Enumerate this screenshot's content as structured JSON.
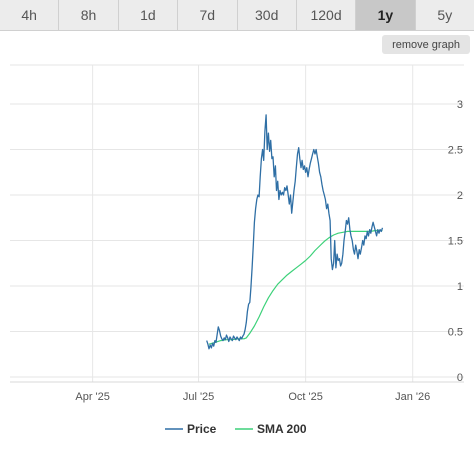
{
  "tabs": [
    {
      "label": "4h",
      "active": false
    },
    {
      "label": "8h",
      "active": false
    },
    {
      "label": "1d",
      "active": false
    },
    {
      "label": "7d",
      "active": false
    },
    {
      "label": "30d",
      "active": false
    },
    {
      "label": "120d",
      "active": false
    },
    {
      "label": "1y",
      "active": true
    },
    {
      "label": "5y",
      "active": false
    }
  ],
  "remove_graph_label": "remove graph",
  "colors": {
    "price": "#2f6fa5",
    "sma": "#3dd17a",
    "grid": "#e6e6e6",
    "active_tab": "#c8c8c8"
  },
  "chart_data": {
    "type": "line",
    "x_ticks": [
      {
        "label": "Apr '25",
        "date": "2025-04-01"
      },
      {
        "label": "Jul '25",
        "date": "2025-07-01"
      },
      {
        "label": "Oct '25",
        "date": "2025-10-01"
      },
      {
        "label": "Jan '26",
        "date": "2026-01-01"
      }
    ],
    "xlim": [
      "2025-01-20",
      "2026-01-21"
    ],
    "ylim": [
      0,
      3
    ],
    "y_ticks": [
      {
        "label": "0",
        "value": 0
      },
      {
        "label": "0.5",
        "value": 0.5
      },
      {
        "label": "1",
        "value": 1
      },
      {
        "label": "1.5",
        "value": 1.5
      },
      {
        "label": "2",
        "value": 2
      },
      {
        "label": "2.5",
        "value": 2.5
      },
      {
        "label": "3",
        "value": 3
      }
    ],
    "y_axis_side": "right",
    "grid": true,
    "legend_placement": "bottom-center",
    "series": [
      {
        "name": "Price",
        "color": "#2f6fa5",
        "points": [
          [
            "2025-07-08",
            0.4
          ],
          [
            "2025-07-09",
            0.36
          ],
          [
            "2025-07-10",
            0.31
          ],
          [
            "2025-07-11",
            0.35
          ],
          [
            "2025-07-12",
            0.32
          ],
          [
            "2025-07-13",
            0.37
          ],
          [
            "2025-07-14",
            0.34
          ],
          [
            "2025-07-15",
            0.4
          ],
          [
            "2025-07-16",
            0.38
          ],
          [
            "2025-07-17",
            0.47
          ],
          [
            "2025-07-18",
            0.55
          ],
          [
            "2025-07-19",
            0.51
          ],
          [
            "2025-07-20",
            0.45
          ],
          [
            "2025-07-21",
            0.42
          ],
          [
            "2025-07-22",
            0.4
          ],
          [
            "2025-07-23",
            0.43
          ],
          [
            "2025-07-24",
            0.41
          ],
          [
            "2025-07-25",
            0.46
          ],
          [
            "2025-07-26",
            0.43
          ],
          [
            "2025-07-27",
            0.39
          ],
          [
            "2025-07-28",
            0.44
          ],
          [
            "2025-07-29",
            0.42
          ],
          [
            "2025-07-30",
            0.4
          ],
          [
            "2025-07-31",
            0.45
          ],
          [
            "2025-08-01",
            0.43
          ],
          [
            "2025-08-02",
            0.41
          ],
          [
            "2025-08-03",
            0.44
          ],
          [
            "2025-08-04",
            0.42
          ],
          [
            "2025-08-05",
            0.4
          ],
          [
            "2025-08-06",
            0.44
          ],
          [
            "2025-08-07",
            0.42
          ],
          [
            "2025-08-08",
            0.45
          ],
          [
            "2025-08-09",
            0.47
          ],
          [
            "2025-08-10",
            0.52
          ],
          [
            "2025-08-11",
            0.6
          ],
          [
            "2025-08-12",
            0.72
          ],
          [
            "2025-08-13",
            0.8
          ],
          [
            "2025-08-14",
            0.82
          ],
          [
            "2025-08-15",
            0.98
          ],
          [
            "2025-08-16",
            1.2
          ],
          [
            "2025-08-17",
            1.45
          ],
          [
            "2025-08-18",
            1.7
          ],
          [
            "2025-08-19",
            1.85
          ],
          [
            "2025-08-20",
            1.95
          ],
          [
            "2025-08-21",
            2.0
          ],
          [
            "2025-08-22",
            1.98
          ],
          [
            "2025-08-23",
            2.2
          ],
          [
            "2025-08-24",
            2.4
          ],
          [
            "2025-08-25",
            2.5
          ],
          [
            "2025-08-26",
            2.38
          ],
          [
            "2025-08-27",
            2.7
          ],
          [
            "2025-08-28",
            2.88
          ],
          [
            "2025-08-29",
            2.5
          ],
          [
            "2025-08-30",
            2.68
          ],
          [
            "2025-08-31",
            2.48
          ],
          [
            "2025-09-01",
            2.6
          ],
          [
            "2025-09-02",
            2.4
          ],
          [
            "2025-09-03",
            2.42
          ],
          [
            "2025-09-04",
            2.2
          ],
          [
            "2025-09-05",
            2.32
          ],
          [
            "2025-09-06",
            2.05
          ],
          [
            "2025-09-07",
            2.15
          ],
          [
            "2025-09-08",
            1.95
          ],
          [
            "2025-09-09",
            2.05
          ],
          [
            "2025-09-10",
            2.0
          ],
          [
            "2025-09-11",
            2.03
          ],
          [
            "2025-09-12",
            2.0
          ],
          [
            "2025-09-13",
            2.08
          ],
          [
            "2025-09-14",
            2.05
          ],
          [
            "2025-09-15",
            2.1
          ],
          [
            "2025-09-16",
            2.0
          ],
          [
            "2025-09-17",
            1.9
          ],
          [
            "2025-09-18",
            2.0
          ],
          [
            "2025-09-19",
            1.8
          ],
          [
            "2025-09-20",
            1.92
          ],
          [
            "2025-09-21",
            2.05
          ],
          [
            "2025-09-22",
            2.15
          ],
          [
            "2025-09-23",
            2.3
          ],
          [
            "2025-09-24",
            2.45
          ],
          [
            "2025-09-25",
            2.52
          ],
          [
            "2025-09-26",
            2.4
          ],
          [
            "2025-09-27",
            2.3
          ],
          [
            "2025-09-28",
            2.38
          ],
          [
            "2025-09-29",
            2.28
          ],
          [
            "2025-09-30",
            2.32
          ],
          [
            "2025-10-01",
            2.25
          ],
          [
            "2025-10-02",
            2.3
          ],
          [
            "2025-10-03",
            2.2
          ],
          [
            "2025-10-04",
            2.28
          ],
          [
            "2025-10-05",
            2.35
          ],
          [
            "2025-10-06",
            2.4
          ],
          [
            "2025-10-07",
            2.45
          ],
          [
            "2025-10-08",
            2.5
          ],
          [
            "2025-10-09",
            2.45
          ],
          [
            "2025-10-10",
            2.5
          ],
          [
            "2025-10-11",
            2.42
          ],
          [
            "2025-10-12",
            2.35
          ],
          [
            "2025-10-13",
            2.25
          ],
          [
            "2025-10-14",
            2.2
          ],
          [
            "2025-10-15",
            2.12
          ],
          [
            "2025-10-16",
            2.05
          ],
          [
            "2025-10-17",
            2.0
          ],
          [
            "2025-10-18",
            1.95
          ],
          [
            "2025-10-19",
            1.85
          ],
          [
            "2025-10-20",
            1.9
          ],
          [
            "2025-10-21",
            1.8
          ],
          [
            "2025-10-22",
            1.72
          ],
          [
            "2025-10-23",
            1.3
          ],
          [
            "2025-10-24",
            1.18
          ],
          [
            "2025-10-25",
            1.25
          ],
          [
            "2025-10-26",
            1.5
          ],
          [
            "2025-10-27",
            1.2
          ],
          [
            "2025-10-28",
            1.35
          ],
          [
            "2025-10-29",
            1.28
          ],
          [
            "2025-10-30",
            1.3
          ],
          [
            "2025-10-31",
            1.22
          ],
          [
            "2025-11-01",
            1.25
          ],
          [
            "2025-11-02",
            1.35
          ],
          [
            "2025-11-03",
            1.5
          ],
          [
            "2025-11-04",
            1.6
          ],
          [
            "2025-11-05",
            1.72
          ],
          [
            "2025-11-06",
            1.68
          ],
          [
            "2025-11-07",
            1.75
          ],
          [
            "2025-11-08",
            1.62
          ],
          [
            "2025-11-09",
            1.55
          ],
          [
            "2025-11-10",
            1.5
          ],
          [
            "2025-11-11",
            1.4
          ],
          [
            "2025-11-12",
            1.35
          ],
          [
            "2025-11-13",
            1.45
          ],
          [
            "2025-11-14",
            1.38
          ],
          [
            "2025-11-15",
            1.3
          ],
          [
            "2025-11-16",
            1.4
          ],
          [
            "2025-11-17",
            1.35
          ],
          [
            "2025-11-18",
            1.42
          ],
          [
            "2025-11-19",
            1.5
          ],
          [
            "2025-11-20",
            1.45
          ],
          [
            "2025-11-21",
            1.55
          ],
          [
            "2025-11-22",
            1.52
          ],
          [
            "2025-11-23",
            1.6
          ],
          [
            "2025-11-24",
            1.55
          ],
          [
            "2025-11-25",
            1.62
          ],
          [
            "2025-11-26",
            1.58
          ],
          [
            "2025-11-27",
            1.65
          ],
          [
            "2025-11-28",
            1.7
          ],
          [
            "2025-11-29",
            1.65
          ],
          [
            "2025-11-30",
            1.6
          ],
          [
            "2025-12-01",
            1.55
          ],
          [
            "2025-12-02",
            1.62
          ],
          [
            "2025-12-03",
            1.58
          ],
          [
            "2025-12-04",
            1.62
          ],
          [
            "2025-12-05",
            1.6
          ],
          [
            "2025-12-06",
            1.64
          ]
        ]
      },
      {
        "name": "SMA 200",
        "color": "#3dd17a",
        "points": [
          [
            "2025-07-10",
            0.36
          ],
          [
            "2025-07-15",
            0.38
          ],
          [
            "2025-07-20",
            0.4
          ],
          [
            "2025-07-25",
            0.41
          ],
          [
            "2025-07-30",
            0.41
          ],
          [
            "2025-08-04",
            0.42
          ],
          [
            "2025-08-09",
            0.42
          ],
          [
            "2025-08-11",
            0.43
          ],
          [
            "2025-08-14",
            0.48
          ],
          [
            "2025-08-18",
            0.56
          ],
          [
            "2025-08-22",
            0.66
          ],
          [
            "2025-08-26",
            0.77
          ],
          [
            "2025-08-30",
            0.87
          ],
          [
            "2025-09-03",
            0.95
          ],
          [
            "2025-09-07",
            1.02
          ],
          [
            "2025-09-11",
            1.07
          ],
          [
            "2025-09-15",
            1.12
          ],
          [
            "2025-09-19",
            1.16
          ],
          [
            "2025-09-23",
            1.2
          ],
          [
            "2025-09-27",
            1.24
          ],
          [
            "2025-10-01",
            1.28
          ],
          [
            "2025-10-05",
            1.33
          ],
          [
            "2025-10-09",
            1.39
          ],
          [
            "2025-10-13",
            1.44
          ],
          [
            "2025-10-17",
            1.49
          ],
          [
            "2025-10-21",
            1.53
          ],
          [
            "2025-10-25",
            1.56
          ],
          [
            "2025-10-29",
            1.58
          ],
          [
            "2025-11-02",
            1.59
          ],
          [
            "2025-11-06",
            1.6
          ],
          [
            "2025-11-10",
            1.6
          ],
          [
            "2025-11-14",
            1.6
          ],
          [
            "2025-11-18",
            1.6
          ],
          [
            "2025-11-22",
            1.6
          ],
          [
            "2025-11-26",
            1.6
          ],
          [
            "2025-11-30",
            1.61
          ],
          [
            "2025-12-06",
            1.61
          ]
        ]
      }
    ]
  }
}
